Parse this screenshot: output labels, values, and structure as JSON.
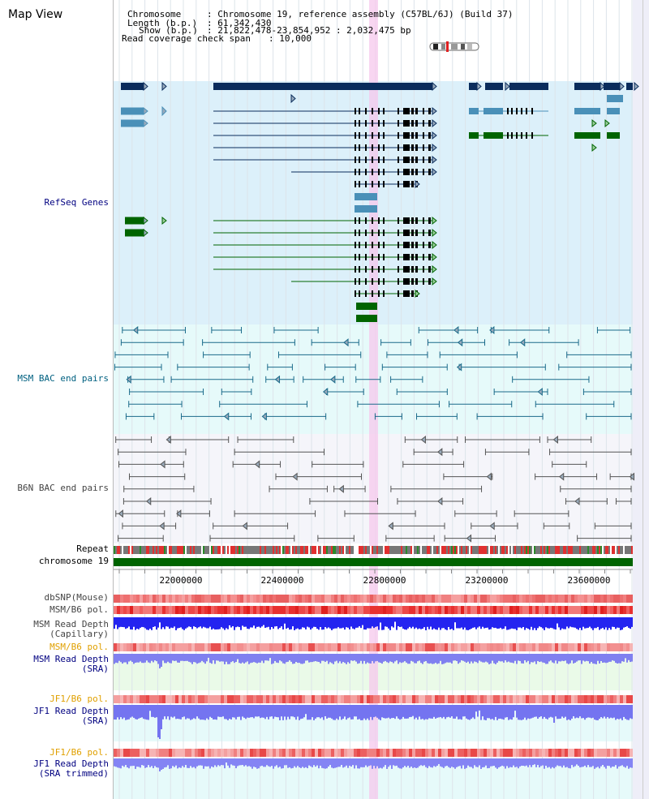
{
  "page": {
    "title": "Map View"
  },
  "info": {
    "chromosome_label": "Chromosome",
    "chromosome_value": ": Chromosome 19, reference assembly (C57BL/6J) (Build 37)",
    "length_label": "Length (b.p.)",
    "length_value": ": 61,342,430",
    "show_label": "Show (b.p.)",
    "show_value": ": 21,822,478-23,854,952 : 2,032,475 bp",
    "coverage_label": "Read coverage check span",
    "coverage_value": ": 10,000"
  },
  "track_labels": {
    "refseq": "RefSeq Genes",
    "msm_bac": "MSM BAC end pairs",
    "b6n_bac": "B6N BAC end pairs",
    "repeat": "Repeat",
    "chromosome": "chromosome 19",
    "dbsnp": "dbSNP(Mouse)",
    "msm_b6_pol": "MSM/B6 pol.",
    "msm_read_depth_cap": "MSM Read Depth\n(Capillary)",
    "msm_b6_pol2": "MSM/B6 pol.",
    "msm_read_depth_sra": "MSM Read Depth\n(SRA)",
    "jf1_b6_pol": "JF1/B6 pol.",
    "jf1_read_depth_sra": "JF1 Read Depth\n(SRA)",
    "jf1_b6_pol2": "JF1/B6 pol.",
    "jf1_read_depth_trim": "JF1 Read Depth\n(SRA trimmed)"
  },
  "axis": {
    "ticks": [
      "22000000",
      "22400000",
      "22800000",
      "23200000",
      "23600000"
    ]
  },
  "colors": {
    "refseq_bg": "#dcf0fa",
    "bac_bg": "#e6fafa",
    "b6n_bg": "#f5f5fa",
    "gene_dark": "#0a2c5c",
    "gene_light": "#4a90b8",
    "gene_green": "#006400",
    "highlight": "#f5c8ec",
    "chrom_green": "#006400",
    "depth_blue": "#1a1aff",
    "label_blue": "#000080",
    "label_teal": "#006080",
    "label_orange": "#e0a000"
  }
}
